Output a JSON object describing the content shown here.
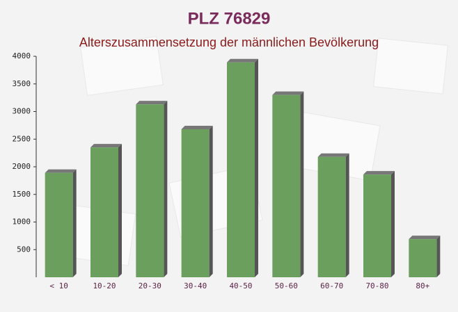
{
  "chart_data": {
    "type": "bar",
    "title": "PLZ 76829",
    "subtitle": "Alterszusammensetzung der männlichen Bevölkerung",
    "categories": [
      "< 10",
      "10-20",
      "20-30",
      "30-40",
      "40-50",
      "50-60",
      "60-70",
      "70-80",
      "80+"
    ],
    "values": [
      1890,
      2350,
      3130,
      2680,
      3890,
      3300,
      2180,
      1860,
      690
    ],
    "color": "#6a9f5e",
    "ylim": [
      0,
      4000
    ],
    "yticks": [
      500,
      1000,
      1500,
      2000,
      2500,
      3000,
      3500,
      4000
    ]
  }
}
